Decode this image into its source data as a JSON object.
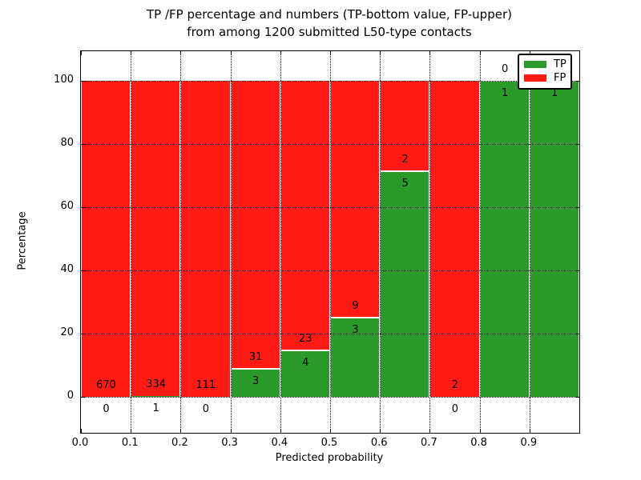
{
  "title": {
    "line1": "TP /FP percentage and numbers (TP-bottom value, FP-upper)",
    "line2": "from among 1200 submitted L50-type contacts"
  },
  "axes": {
    "xlabel": "Predicted probability",
    "ylabel": "Percentage",
    "x_tick_labels": [
      "0.0",
      "0.1",
      "0.2",
      "0.3",
      "0.4",
      "0.5",
      "0.6",
      "0.7",
      "0.8",
      "0.9"
    ],
    "y_tick_labels": [
      "0",
      "20",
      "40",
      "60",
      "80",
      "100"
    ]
  },
  "legend": {
    "items": [
      {
        "label": "TP",
        "color_key": "tp"
      },
      {
        "label": "FP",
        "color_key": "fp"
      }
    ]
  },
  "colors": {
    "tp": "#2a9a2a",
    "fp": "#ff1a14",
    "text": "#000000",
    "grid": "#000000"
  },
  "chart_data": {
    "type": "bar",
    "stacked": true,
    "normalized_to_percent": true,
    "title": "TP /FP percentage and numbers (TP-bottom value, FP-upper) from among 1200 submitted L50-type contacts",
    "xlabel": "Predicted probability",
    "ylabel": "Percentage",
    "total_submitted": 1200,
    "bin_edges": [
      0.0,
      0.1,
      0.2,
      0.3,
      0.4,
      0.5,
      0.6,
      0.7,
      0.8,
      0.9,
      1.0
    ],
    "x_tick_labels": [
      "0.0",
      "0.1",
      "0.2",
      "0.3",
      "0.4",
      "0.5",
      "0.6",
      "0.7",
      "0.8",
      "0.9"
    ],
    "y_ticks": [
      0,
      20,
      40,
      60,
      80,
      100
    ],
    "xlim": [
      0.0,
      1.0
    ],
    "ylim": [
      -11.4,
      109.4
    ],
    "grid_style": "dotted",
    "legend_position": "upper right",
    "series": [
      {
        "name": "TP",
        "role": "bottom",
        "counts": [
          0,
          1,
          0,
          3,
          4,
          3,
          5,
          0,
          1,
          1
        ],
        "percent": [
          0.0,
          0.3,
          0.0,
          8.8,
          14.8,
          25.0,
          71.4,
          0.0,
          100.0,
          100.0
        ]
      },
      {
        "name": "FP",
        "role": "top",
        "counts": [
          670,
          334,
          111,
          31,
          23,
          9,
          2,
          2,
          0,
          0
        ],
        "percent": [
          100.0,
          99.7,
          100.0,
          91.2,
          85.2,
          75.0,
          28.6,
          100.0,
          0.0,
          0.0
        ]
      }
    ]
  }
}
